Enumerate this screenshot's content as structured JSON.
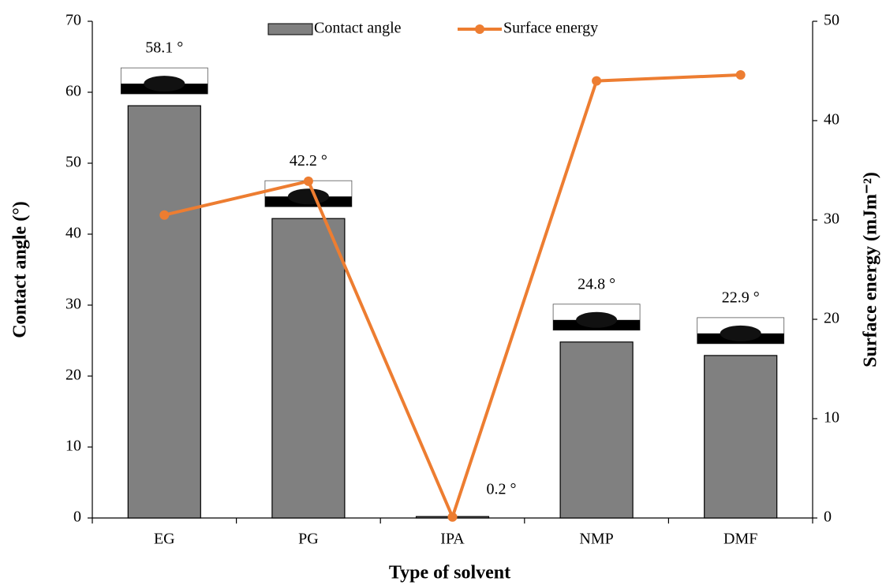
{
  "chart_data": {
    "type": "combo",
    "categories": [
      "EG",
      "PG",
      "IPA",
      "NMP",
      "DMF"
    ],
    "series": [
      {
        "name": "Contact angle",
        "type": "bar",
        "color": "#808080",
        "values": [
          58.1,
          42.2,
          0.2,
          24.8,
          22.9
        ],
        "value_labels": [
          "58.1 °",
          "42.2 °",
          "0.2 °",
          "24.8 °",
          "22.9 °"
        ]
      },
      {
        "name": "Surface energy",
        "type": "line",
        "axis": "y2",
        "color": "#ED7D31",
        "values": [
          30.5,
          33.9,
          0.1,
          44.0,
          44.6
        ]
      }
    ],
    "xlabel": "Type of solvent",
    "ylabel": "Contact angle (°)",
    "y2label": "Surface energy (mJm⁻²)",
    "ylim": [
      0,
      70
    ],
    "yticks": [
      0,
      10,
      20,
      30,
      40,
      50,
      60,
      70
    ],
    "y2lim": [
      0,
      50
    ],
    "y2ticks": [
      0,
      10,
      20,
      30,
      40,
      50
    ]
  }
}
